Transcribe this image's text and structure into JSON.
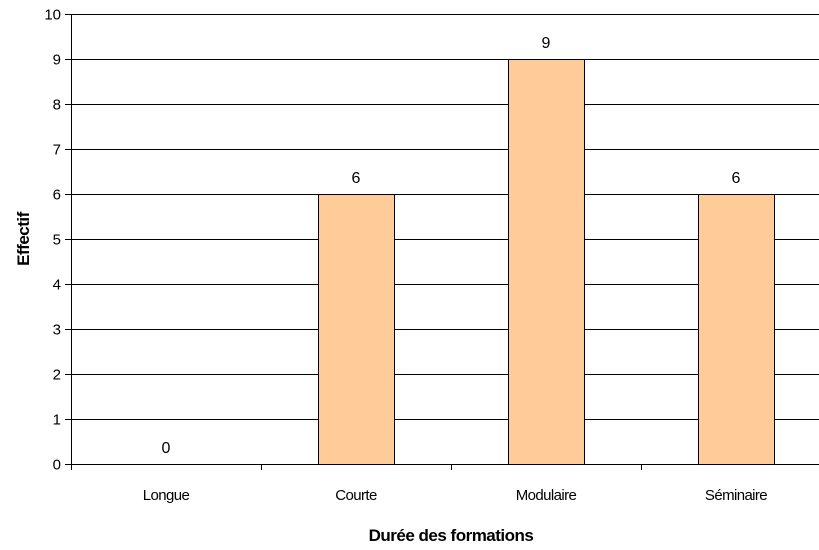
{
  "chart_data": {
    "type": "bar",
    "title": "",
    "xlabel": "Durée des formations",
    "ylabel": "Effectif",
    "categories": [
      "Longue",
      "Courte",
      "Modulaire",
      "Séminaire"
    ],
    "values": [
      0,
      6,
      9,
      6
    ],
    "data_labels": [
      "0",
      "6",
      "9",
      "6"
    ],
    "ylim": [
      0,
      10
    ],
    "yticks": [
      "0",
      "1",
      "2",
      "3",
      "4",
      "5",
      "6",
      "7",
      "8",
      "9",
      "10"
    ],
    "grid": true,
    "legend": "none",
    "colors": {
      "bar_fill": "#ffcc99",
      "bar_stroke": "#000000",
      "grid": "#000000"
    }
  }
}
